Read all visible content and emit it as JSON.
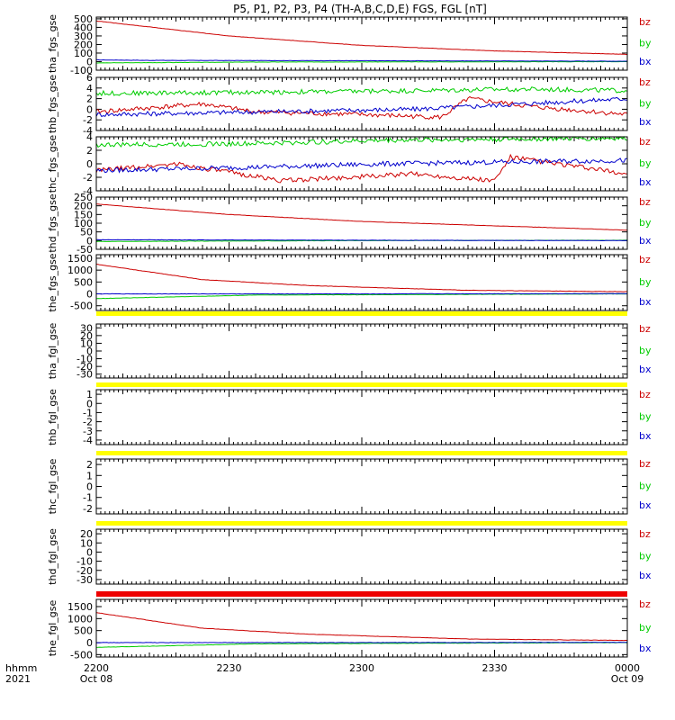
{
  "chart_data": {
    "type": "line",
    "title": "P5, P1, P2, P3, P4 (TH-A,B,C,D,E) FGS, FGL [nT]",
    "time_axis": {
      "row_label": "hhmm",
      "year_label": "2021",
      "ticks": [
        "2200",
        "2230",
        "2300",
        "2330",
        "0000"
      ],
      "dates": [
        "Oct 08",
        "Oct 09"
      ]
    },
    "legend": [
      {
        "name": "bz",
        "color": "#cc0000"
      },
      {
        "name": "by",
        "color": "#00cc00"
      },
      {
        "name": "bx",
        "color": "#0000cc"
      }
    ],
    "panels": [
      {
        "ylabel": "tha_fgs_gse",
        "ylim": [
          -100,
          520
        ],
        "ticks": [
          "500",
          "400",
          "300",
          "200",
          "100",
          "0",
          "-100"
        ],
        "bz": [
          [
            0,
            475
          ],
          [
            0.25,
            300
          ],
          [
            0.5,
            190
          ],
          [
            0.75,
            125
          ],
          [
            1,
            85
          ]
        ],
        "by": [
          [
            0,
            -15
          ],
          [
            0.3,
            -5
          ],
          [
            1,
            0
          ]
        ],
        "bx": [
          [
            0,
            20
          ],
          [
            0.1,
            15
          ],
          [
            1,
            5
          ]
        ]
      },
      {
        "ylabel": "thb_fgs_gse",
        "ylim": [
          -4,
          6
        ],
        "ticks": [
          "6",
          "4",
          "2",
          "0",
          "-2",
          "-4"
        ],
        "bz": [
          [
            0,
            -0.5
          ],
          [
            0.2,
            1
          ],
          [
            0.3,
            -0.5
          ],
          [
            0.5,
            -1
          ],
          [
            0.65,
            -1.5
          ],
          [
            0.7,
            2
          ],
          [
            0.82,
            0.5
          ],
          [
            1,
            -1
          ]
        ],
        "by": [
          [
            0,
            3
          ],
          [
            0.3,
            3.2
          ],
          [
            0.6,
            3.5
          ],
          [
            0.8,
            3.8
          ],
          [
            1,
            3.5
          ]
        ],
        "bx": [
          [
            0,
            -1
          ],
          [
            0.3,
            -0.5
          ],
          [
            0.6,
            0
          ],
          [
            0.8,
            1
          ],
          [
            1,
            2
          ]
        ]
      },
      {
        "ylabel": "thc_fgs_gse",
        "ylim": [
          -4,
          4
        ],
        "ticks": [
          "4",
          "2",
          "0",
          "-2",
          "-4"
        ],
        "bz": [
          [
            0,
            -1
          ],
          [
            0.15,
            0
          ],
          [
            0.35,
            -2.5
          ],
          [
            0.6,
            -1.5
          ],
          [
            0.75,
            -2.5
          ],
          [
            0.78,
            1
          ],
          [
            1,
            -1.5
          ]
        ],
        "by": [
          [
            0,
            2.8
          ],
          [
            0.3,
            3
          ],
          [
            0.55,
            3.5
          ],
          [
            1,
            3.8
          ]
        ],
        "bx": [
          [
            0,
            -1
          ],
          [
            0.3,
            -0.5
          ],
          [
            0.55,
            0
          ],
          [
            0.8,
            0.3
          ],
          [
            1,
            0.5
          ]
        ]
      },
      {
        "ylabel": "thd_fgs_gse",
        "ylim": [
          -50,
          250
        ],
        "ticks": [
          "250",
          "200",
          "150",
          "100",
          "50",
          "0",
          "-50"
        ],
        "bz": [
          [
            0,
            210
          ],
          [
            0.25,
            150
          ],
          [
            0.5,
            110
          ],
          [
            0.75,
            85
          ],
          [
            1,
            60
          ]
        ],
        "by": [
          [
            0,
            -5
          ],
          [
            0.5,
            0
          ],
          [
            1,
            2
          ]
        ],
        "bx": [
          [
            0,
            5
          ],
          [
            0.5,
            2
          ],
          [
            1,
            0
          ]
        ]
      },
      {
        "ylabel": "the_fgs_gse",
        "ylim": [
          -700,
          1650
        ],
        "ticks": [
          "1500",
          "1000",
          "500",
          "0",
          "-500"
        ],
        "bz": [
          [
            0,
            1250
          ],
          [
            0.2,
            600
          ],
          [
            0.4,
            350
          ],
          [
            0.7,
            150
          ],
          [
            1,
            90
          ]
        ],
        "by": [
          [
            0,
            -200
          ],
          [
            0.3,
            -50
          ],
          [
            1,
            0
          ]
        ],
        "bx": [
          [
            0,
            0
          ],
          [
            0.5,
            0
          ],
          [
            1,
            10
          ]
        ]
      },
      {
        "ylabel": "tha_fgl_gse",
        "ylim": [
          -35,
          35
        ],
        "ticks": [
          "30",
          "20",
          "10",
          "0",
          "-10",
          "-20",
          "-30"
        ],
        "bz": [],
        "by": [],
        "bx": []
      },
      {
        "ylabel": "thb_fgl_gse",
        "ylim": [
          -4.5,
          1.5
        ],
        "ticks": [
          "1",
          "0",
          "-1",
          "-2",
          "-3",
          "-4"
        ],
        "bz": [],
        "by": [],
        "bx": []
      },
      {
        "ylabel": "thc_fgl_gse",
        "ylim": [
          -2.5,
          2.5
        ],
        "ticks": [
          "2",
          "1",
          "0",
          "-1",
          "-2"
        ],
        "bz": [],
        "by": [],
        "bx": []
      },
      {
        "ylabel": "thd_fgl_gse",
        "ylim": [
          -35,
          25
        ],
        "ticks": [
          "20",
          "10",
          "0",
          "-10",
          "-20",
          "-30"
        ],
        "bz": [],
        "by": [],
        "bx": []
      },
      {
        "ylabel": "the_fgl_gse",
        "ylim": [
          -600,
          1800
        ],
        "ticks": [
          "1500",
          "1000",
          "500",
          "0",
          "-500"
        ],
        "bz": [
          [
            0,
            1250
          ],
          [
            0.2,
            600
          ],
          [
            0.4,
            350
          ],
          [
            0.7,
            150
          ],
          [
            1,
            90
          ]
        ],
        "by": [
          [
            0,
            -200
          ],
          [
            0.3,
            -50
          ],
          [
            1,
            0
          ]
        ],
        "bx": [
          [
            0,
            0
          ],
          [
            0.5,
            0
          ],
          [
            1,
            10
          ]
        ]
      }
    ]
  }
}
